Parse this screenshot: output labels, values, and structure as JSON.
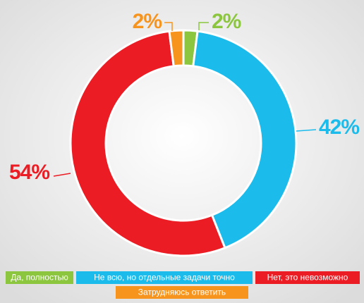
{
  "chart_data": {
    "type": "pie",
    "categories": [
      "Да, полностью",
      "Не всю, но отдельные задачи точно",
      "Нет, это невозможно",
      "Затрудняюсь ответить"
    ],
    "values": [
      2,
      42,
      54,
      2
    ],
    "value_labels": [
      "2%",
      "42%",
      "54%",
      "2%"
    ],
    "colors": [
      "#8cc63f",
      "#1bbcec",
      "#ec1c24",
      "#f7941d"
    ],
    "donut": true
  }
}
